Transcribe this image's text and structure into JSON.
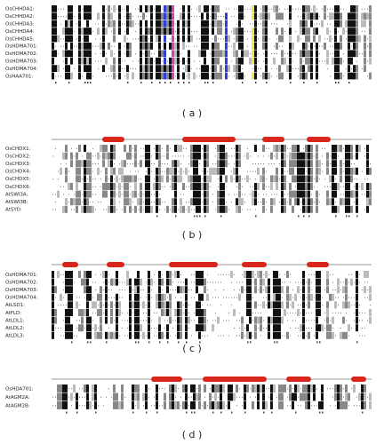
{
  "panels": [
    {
      "label": "( a )",
      "sequences": [
        "OsCHHDA1:",
        "OsCHHDA2:",
        "OsCHHDA3:",
        "OsCHHDA4:",
        "OsCHHDA5:",
        "OsHDMA701:",
        "OsHDMA702:",
        "OsHDMA703:",
        "OsHDMA704:",
        "OsHAA701:"
      ]
    },
    {
      "label": "( b )",
      "sequences": [
        "OsCHDX1:",
        "OsCHDX2:",
        "OsCHDX3:",
        "OsCHDX4:",
        "OsCHDX5:",
        "OsCHDX6:",
        "AtSWI3A:",
        "AtSWI3B:",
        "AtSYD:"
      ]
    },
    {
      "label": "( c )",
      "sequences": [
        "OsHDMA701:",
        "OsHDMA702:",
        "OsHDMA703:",
        "OsHDMA704:",
        "AtLSD1:",
        "AtFLD:",
        "AtLDL1:",
        "AtLDL2:",
        "AtLDL3:"
      ]
    },
    {
      "label": "( d )",
      "sequences": [
        "OsHDA701:",
        "AtAGM2A:",
        "AtAGM2B:"
      ]
    }
  ]
}
